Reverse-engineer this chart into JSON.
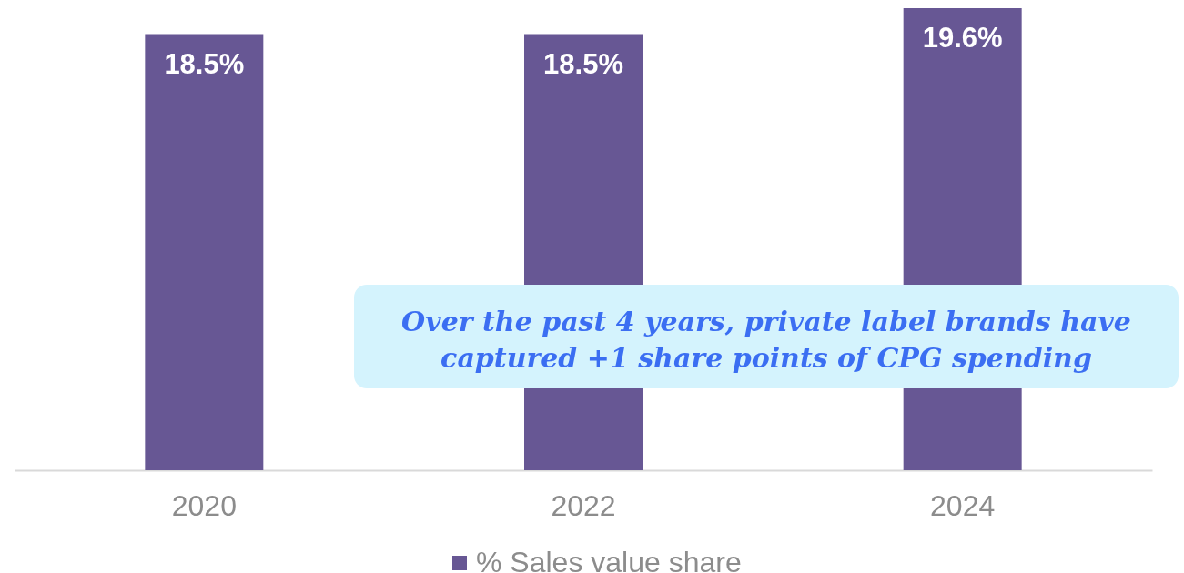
{
  "chart_data": {
    "type": "bar",
    "categories": [
      "2020",
      "2022",
      "2024"
    ],
    "series": [
      {
        "name": "% Sales value share",
        "color": "#675794",
        "values": [
          18.5,
          18.5,
          19.6
        ],
        "value_labels": [
          "18.5%",
          "18.5%",
          "19.6%"
        ]
      }
    ],
    "legend": "bottom",
    "annotations": [
      "Over the past 4 years, private label brands have\ncaptured +1 share points of CPG spending"
    ]
  }
}
